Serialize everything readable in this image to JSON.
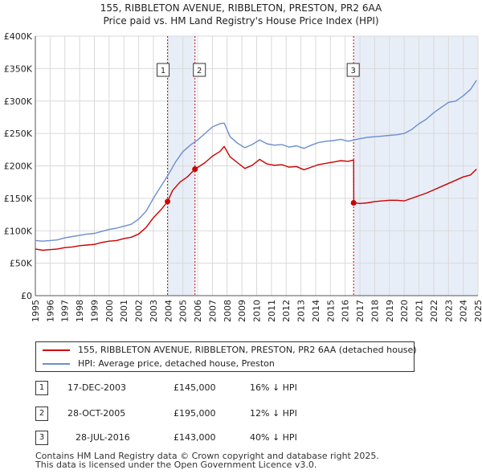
{
  "title": "155, RIBBLETON AVENUE, RIBBLETON, PRESTON, PR2 6AA",
  "subtitle": "Price paid vs. HM Land Registry's House Price Index (HPI)",
  "colors": {
    "price_line": "#cc0000",
    "hpi_line": "#6b8fcf",
    "shade": "#e8eef8",
    "grid": "#d9d9d9",
    "vline": "#cc0000"
  },
  "chart_data": {
    "type": "line",
    "xlim": [
      1995,
      2025
    ],
    "ylim": [
      0,
      400000
    ],
    "y_ticks": [
      0,
      50000,
      100000,
      150000,
      200000,
      250000,
      300000,
      350000,
      400000
    ],
    "y_tick_labels": [
      "£0",
      "£50K",
      "£100K",
      "£150K",
      "£200K",
      "£250K",
      "£300K",
      "£350K",
      "£400K"
    ],
    "x_ticks": [
      1995,
      1996,
      1997,
      1998,
      1999,
      2000,
      2001,
      2002,
      2003,
      2004,
      2005,
      2006,
      2007,
      2008,
      2009,
      2010,
      2011,
      2012,
      2013,
      2014,
      2015,
      2016,
      2017,
      2018,
      2019,
      2020,
      2021,
      2022,
      2023,
      2024,
      2025
    ],
    "x_tick_labels": [
      "1995",
      "1996",
      "1997",
      "1998",
      "1999",
      "2000",
      "2001",
      "2002",
      "2003",
      "2004",
      "2005",
      "2006",
      "2007",
      "2008",
      "2009",
      "2010",
      "2011",
      "2012",
      "2013",
      "2014",
      "2015",
      "2016",
      "2017",
      "2018",
      "2019",
      "2020",
      "2021",
      "2022",
      "2023",
      "2024",
      "2025"
    ],
    "shaded_ranges": [
      [
        2003.96,
        2005.82
      ],
      [
        2016.57,
        2025.0
      ]
    ],
    "series": [
      {
        "name": "155, RIBBLETON AVENUE, RIBBLETON, PRESTON, PR2 6AA (detached house)",
        "x": [
          1995,
          1995.5,
          1996,
          1996.5,
          1997,
          1997.5,
          1998,
          1998.5,
          1999,
          1999.5,
          2000,
          2000.5,
          2001,
          2001.5,
          2002,
          2002.5,
          2003,
          2003.5,
          2003.96,
          2004.3,
          2004.8,
          2005.3,
          2005.82,
          2006.5,
          2007,
          2007.5,
          2007.8,
          2008.2,
          2008.7,
          2009.2,
          2009.7,
          2010.2,
          2010.7,
          2011.2,
          2011.7,
          2012.2,
          2012.7,
          2013.2,
          2013.7,
          2014.2,
          2014.7,
          2015.2,
          2015.7,
          2016.2,
          2016.57,
          2016.58,
          2017,
          2017.5,
          2018,
          2018.5,
          2019,
          2019.5,
          2020,
          2020.5,
          2021,
          2021.5,
          2022,
          2022.5,
          2023,
          2023.5,
          2024,
          2024.5,
          2024.9
        ],
        "values": [
          72000,
          70000,
          71000,
          72000,
          74000,
          75000,
          77000,
          78000,
          79000,
          82000,
          84000,
          85000,
          88000,
          90000,
          95000,
          105000,
          120000,
          132000,
          145000,
          162000,
          175000,
          183000,
          195000,
          205000,
          215000,
          222000,
          230000,
          214000,
          205000,
          196000,
          201000,
          210000,
          203000,
          201000,
          202000,
          198000,
          199000,
          194000,
          198000,
          202000,
          204000,
          206000,
          208000,
          207000,
          209000,
          143000,
          142000,
          143000,
          145000,
          146000,
          147000,
          147000,
          146000,
          150000,
          154000,
          158000,
          163000,
          168000,
          173000,
          178000,
          183000,
          186000,
          195000
        ]
      },
      {
        "name": "HPI: Average price, detached house, Preston",
        "x": [
          1995,
          1995.5,
          1996,
          1996.5,
          1997,
          1997.5,
          1998,
          1998.5,
          1999,
          1999.5,
          2000,
          2000.5,
          2001,
          2001.5,
          2002,
          2002.5,
          2003,
          2003.5,
          2004,
          2004.5,
          2005,
          2005.5,
          2006,
          2006.5,
          2007,
          2007.5,
          2007.8,
          2008.2,
          2008.7,
          2009.2,
          2009.7,
          2010.2,
          2010.7,
          2011.2,
          2011.7,
          2012.2,
          2012.7,
          2013.2,
          2013.7,
          2014.2,
          2014.7,
          2015.2,
          2015.7,
          2016.2,
          2016.6,
          2017,
          2017.5,
          2018,
          2018.5,
          2019,
          2019.5,
          2020,
          2020.5,
          2021,
          2021.5,
          2022,
          2022.5,
          2023,
          2023.5,
          2024,
          2024.5,
          2024.9
        ],
        "values": [
          85000,
          84000,
          85000,
          86000,
          89000,
          91000,
          93000,
          95000,
          96000,
          99000,
          102000,
          104000,
          107000,
          110000,
          118000,
          130000,
          150000,
          168000,
          186000,
          206000,
          222000,
          232000,
          240000,
          250000,
          260000,
          265000,
          266000,
          245000,
          235000,
          228000,
          233000,
          240000,
          234000,
          232000,
          233000,
          229000,
          231000,
          227000,
          232000,
          236000,
          238000,
          239000,
          241000,
          238000,
          240000,
          242000,
          244000,
          245000,
          246000,
          247000,
          248000,
          250000,
          256000,
          265000,
          272000,
          282000,
          290000,
          298000,
          300000,
          308000,
          318000,
          332000
        ]
      }
    ],
    "markers": [
      {
        "label": "1",
        "x": 2003.96,
        "y": 145000
      },
      {
        "label": "2",
        "x": 2005.82,
        "y": 195000
      },
      {
        "label": "3",
        "x": 2016.57,
        "y": 143000
      }
    ]
  },
  "legend": {
    "price_label": "155, RIBBLETON AVENUE, RIBBLETON, PRESTON, PR2 6AA (detached house)",
    "hpi_label": "HPI: Average price, detached house, Preston"
  },
  "transactions": [
    {
      "num": "1",
      "date": "17-DEC-2003",
      "price": "£145,000",
      "hpi": "16% ↓ HPI"
    },
    {
      "num": "2",
      "date": "28-OCT-2005",
      "price": "£195,000",
      "hpi": "12% ↓ HPI"
    },
    {
      "num": "3",
      "date": "28-JUL-2016",
      "price": "£143,000",
      "hpi": "40% ↓ HPI"
    }
  ],
  "footer": {
    "line1": "Contains HM Land Registry data © Crown copyright and database right 2025.",
    "line2": "This data is licensed under the Open Government Licence v3.0."
  }
}
